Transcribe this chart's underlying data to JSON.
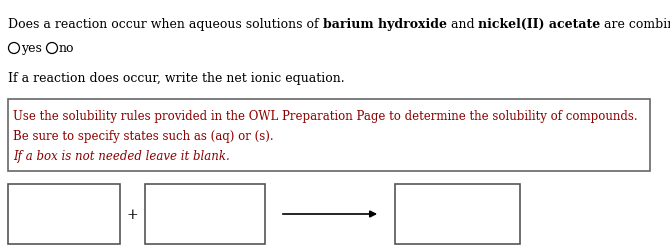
{
  "line1_normal1": "Does a reaction occur when aqueous solutions of ",
  "line1_bold1": "barium hydroxide",
  "line1_mid": " and ",
  "line1_bold2": "nickel(II) acetate",
  "line1_end": " are combined?",
  "radio_yes": "yes",
  "radio_no": "no",
  "line3": "If a reaction does occur, write the net ionic equation.",
  "hint_line1": "Use the solubility rules provided in the OWL Preparation Page to determine the solubility of compounds.",
  "hint_line2": "Be sure to specify states such as (aq) or (s).",
  "hint_line3": "If a box is not needed leave it blank.",
  "hint_text_color": "#8B0000",
  "normal_text_color": "#000000",
  "background_color": "#ffffff",
  "font_size": 9.0,
  "hint_font_size": 8.5
}
